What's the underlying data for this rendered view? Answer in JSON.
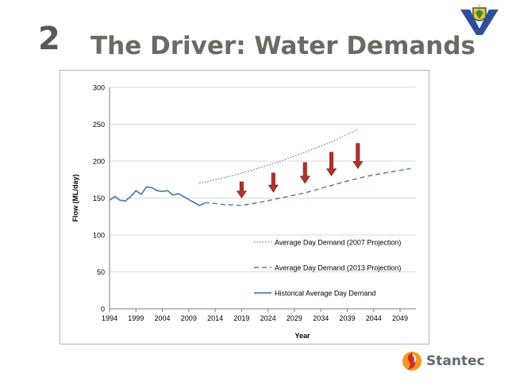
{
  "slide": {
    "number": "2",
    "title": "The Driver: Water Demands",
    "brand_name": "Stantec"
  },
  "colors": {
    "title_gray": "#6b6b62",
    "series_blue": "#4f81bd",
    "arrow_red": "#b5312a",
    "gridline": "#d9d9d9"
  },
  "icons": {
    "top_logo": "shield-crest-icon",
    "brand_logo": "stantec-swirl-icon"
  },
  "chart_data": {
    "type": "line",
    "title": "",
    "xlabel": "Year",
    "ylabel": "Flow (ML/day)",
    "xlim": [
      1994,
      2052
    ],
    "ylim": [
      0,
      300
    ],
    "x_ticks": [
      "1994",
      "1999",
      "2004",
      "2009",
      "2014",
      "2019",
      "2024",
      "2029",
      "2034",
      "2039",
      "2044",
      "2049"
    ],
    "y_ticks": [
      "0",
      "50",
      "100",
      "150",
      "200",
      "250",
      "300"
    ],
    "grid": true,
    "legend_position": "lower-right",
    "series": [
      {
        "name": "Historical Average Day Demand",
        "style": "solid",
        "x": [
          1994,
          1995,
          1996,
          1997,
          1998,
          1999,
          2000,
          2001,
          2002,
          2003,
          2004,
          2005,
          2006,
          2007,
          2008,
          2009,
          2010,
          2011,
          2012
        ],
        "y": [
          147,
          152,
          147,
          146,
          152,
          160,
          155,
          165,
          164,
          160,
          159,
          160,
          154,
          156,
          152,
          148,
          144,
          140,
          143
        ]
      },
      {
        "name": "Average Day Demand (2007 Projection)",
        "style": "dotted",
        "x": [
          2011,
          2016,
          2021,
          2026,
          2031,
          2036,
          2041
        ],
        "y": [
          170,
          178,
          188,
          199,
          212,
          226,
          243
        ]
      },
      {
        "name": "Average Day Demand (2013 Projection)",
        "style": "dashed",
        "x": [
          2012,
          2016,
          2019,
          2023,
          2027,
          2031,
          2035,
          2039,
          2043,
          2047,
          2051
        ],
        "y": [
          144,
          141,
          140,
          145,
          151,
          157,
          165,
          173,
          180,
          185,
          190
        ]
      }
    ],
    "annotations": [
      {
        "kind": "down-arrow",
        "x": 2019,
        "y_from": 172,
        "y_to": 150
      },
      {
        "kind": "down-arrow",
        "x": 2025,
        "y_from": 184,
        "y_to": 158
      },
      {
        "kind": "down-arrow",
        "x": 2031,
        "y_from": 198,
        "y_to": 170
      },
      {
        "kind": "down-arrow",
        "x": 2036,
        "y_from": 212,
        "y_to": 180
      },
      {
        "kind": "down-arrow",
        "x": 2041,
        "y_from": 224,
        "y_to": 190
      }
    ]
  }
}
